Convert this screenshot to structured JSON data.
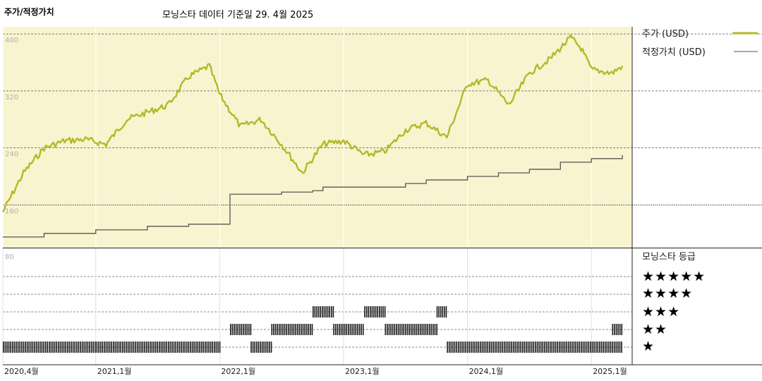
{
  "header": {
    "title": "주가/적정가치",
    "subtitle": "모닝스타 데이터 기준일 29. 4월 2025"
  },
  "colors": {
    "price": "#b5b82a",
    "fair_value": "#555555",
    "panel_bg": "#f8f4cf",
    "rating_bar": "#1a1a1a"
  },
  "chart_data": [
    {
      "type": "line",
      "x_tick_labels": [
        "2020,4월",
        "2021,1월",
        "2022,1월",
        "2023,1월",
        "2024,1월",
        "2025,1월"
      ],
      "x_tick_dates": [
        "2020-04",
        "2021-01",
        "2022-01",
        "2023-01",
        "2024-01",
        "2025-01"
      ],
      "x_range": [
        "2020-04",
        "2025-04"
      ],
      "y_ticks": [
        160,
        240,
        320,
        400
      ],
      "ylim": [
        100,
        410
      ],
      "grid": true,
      "legend_position": "right",
      "series": [
        {
          "name": "주가 (USD)",
          "x": [
            "2020-04",
            "2020-06",
            "2020-08",
            "2020-10",
            "2020-12",
            "2021-02",
            "2021-04",
            "2021-06",
            "2021-08",
            "2021-10",
            "2021-12",
            "2022-01",
            "2022-03",
            "2022-05",
            "2022-07",
            "2022-09",
            "2022-11",
            "2023-01",
            "2023-03",
            "2023-05",
            "2023-07",
            "2023-09",
            "2023-11",
            "2024-01",
            "2024-03",
            "2024-05",
            "2024-07",
            "2024-09",
            "2024-11",
            "2024-12",
            "2025-01",
            "2025-03",
            "2025-04"
          ],
          "values": [
            150,
            205,
            240,
            250,
            252,
            245,
            280,
            290,
            300,
            340,
            355,
            315,
            270,
            280,
            245,
            205,
            245,
            250,
            230,
            235,
            265,
            275,
            255,
            330,
            335,
            300,
            345,
            365,
            395,
            380,
            350,
            345,
            355
          ]
        },
        {
          "name": "적정가치 (USD)",
          "x": [
            "2020-04",
            "2020-08",
            "2021-01",
            "2021-06",
            "2021-10",
            "2022-01",
            "2022-02",
            "2022-07",
            "2022-10",
            "2022-11",
            "2023-07",
            "2023-09",
            "2024-01",
            "2024-04",
            "2024-07",
            "2024-10",
            "2025-01",
            "2025-04"
          ],
          "values": [
            115,
            120,
            125,
            130,
            133,
            133,
            175,
            178,
            180,
            185,
            190,
            195,
            200,
            205,
            210,
            220,
            225,
            230
          ]
        }
      ]
    },
    {
      "type": "bar",
      "title": "모닝스타 등급",
      "y_tick_labels": [
        "80"
      ],
      "rating_levels": [
        "★★★★★",
        "★★★★",
        "★★★",
        "★★",
        "★"
      ],
      "rating_values_meaning": "star rating over time (1-5)",
      "segments": [
        {
          "start": "2020-04",
          "end": "2022-01",
          "rating": 1
        },
        {
          "start": "2022-02",
          "end": "2022-04",
          "rating": 2
        },
        {
          "start": "2022-04",
          "end": "2022-06",
          "rating": 1
        },
        {
          "start": "2022-06",
          "end": "2022-10",
          "rating": 2
        },
        {
          "start": "2022-10",
          "end": "2022-12",
          "rating": 3
        },
        {
          "start": "2022-12",
          "end": "2023-03",
          "rating": 2
        },
        {
          "start": "2023-03",
          "end": "2023-05",
          "rating": 3
        },
        {
          "start": "2023-05",
          "end": "2023-10",
          "rating": 2
        },
        {
          "start": "2023-10",
          "end": "2023-11",
          "rating": 3
        },
        {
          "start": "2023-11",
          "end": "2025-04",
          "rating": 1
        },
        {
          "start": "2025-03",
          "end": "2025-04",
          "rating": 2
        }
      ]
    }
  ]
}
